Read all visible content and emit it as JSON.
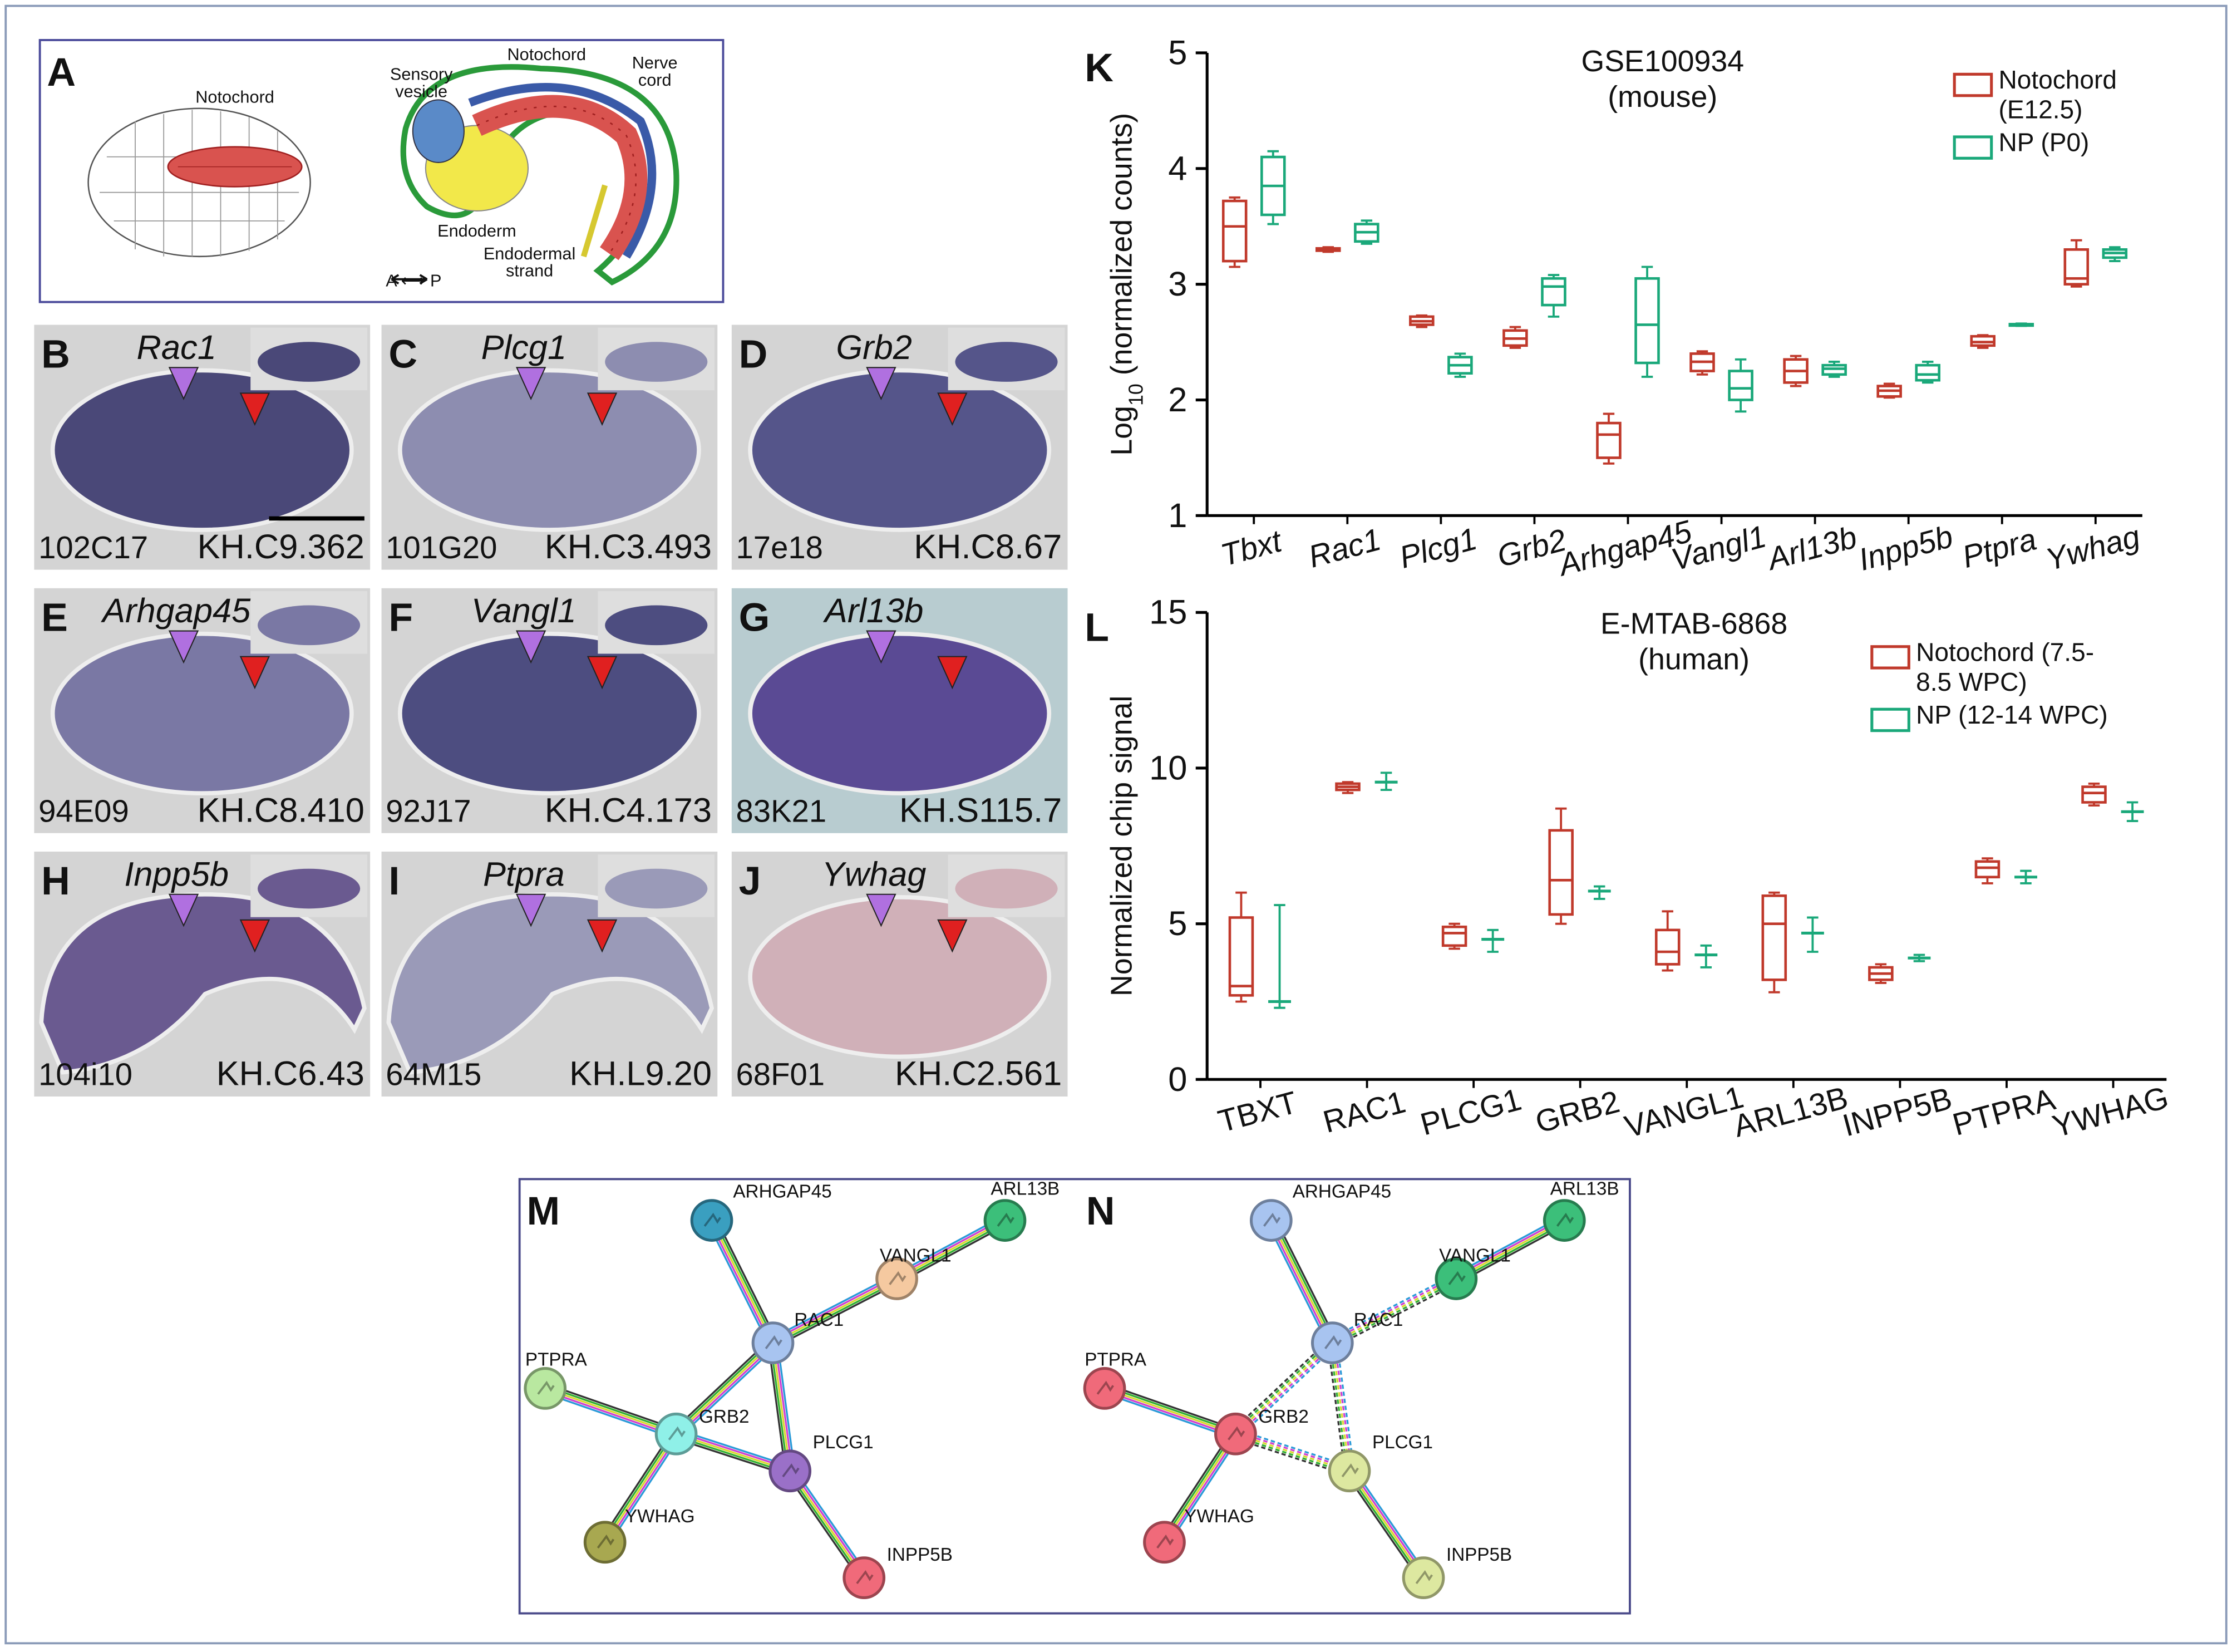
{
  "panel_a": {
    "label": "A",
    "embryo_label": "Notochord",
    "larva_labels": [
      [
        "Sensory",
        "vesicle"
      ],
      [
        "Notochord"
      ],
      [
        "Nerve",
        "cord"
      ],
      [
        "Endoderm"
      ],
      [
        "Endodermal",
        "strand"
      ]
    ],
    "axis": "A ⟷ P"
  },
  "in_situ": [
    {
      "label": "B",
      "gene": "Rac1",
      "clone": "102C17",
      "model": "KH.C9.362"
    },
    {
      "label": "C",
      "gene": "Plcg1",
      "clone": "101G20",
      "model": "KH.C3.493"
    },
    {
      "label": "D",
      "gene": "Grb2",
      "clone": "17e18",
      "model": "KH.C8.67"
    },
    {
      "label": "E",
      "gene": "Arhgap45",
      "clone": "94E09",
      "model": "KH.C8.410"
    },
    {
      "label": "F",
      "gene": "Vangl1",
      "clone": "92J17",
      "model": "KH.C4.173"
    },
    {
      "label": "G",
      "gene": "Arl13b",
      "clone": "83K21",
      "model": "KH.S115.7"
    },
    {
      "label": "H",
      "gene": "Inpp5b",
      "clone": "104i10",
      "model": "KH.C6.43"
    },
    {
      "label": "I",
      "gene": "Ptpra",
      "clone": "64M15",
      "model": "KH.L9.20"
    },
    {
      "label": "J",
      "gene": "Ywhag",
      "clone": "68F01",
      "model": "KH.C2.561"
    }
  ],
  "chart_data": [
    {
      "type": "box",
      "panel": "K",
      "title": "GSE100934",
      "subtitle": "(mouse)",
      "y_label": {
        "base": "Log",
        "subscript": "10",
        "text": " (normalized counts)"
      },
      "categories": [
        "Tbxt",
        "Rac1",
        "Plcg1",
        "Grb2",
        "Arhgap45",
        "Vangl1",
        "Arl13b",
        "Inpp5b",
        "Ptpra",
        "Ywhag"
      ],
      "category_style": "italic",
      "ylim": [
        1,
        5
      ],
      "yticks": [
        1,
        2,
        3,
        4,
        5
      ],
      "legend": "top-right",
      "series": [
        {
          "name": "Notochord (E12.5)",
          "color": "#c0392b",
          "min": [
            3.15,
            3.28,
            2.63,
            2.45,
            1.45,
            2.22,
            2.12,
            2.02,
            2.45,
            2.98
          ],
          "q1": [
            3.2,
            3.29,
            2.65,
            2.47,
            1.5,
            2.25,
            2.15,
            2.03,
            2.47,
            3.0
          ],
          "median": [
            3.5,
            3.3,
            2.68,
            2.53,
            1.7,
            2.33,
            2.25,
            2.08,
            2.5,
            3.05
          ],
          "q3": [
            3.72,
            3.31,
            2.72,
            2.6,
            1.8,
            2.4,
            2.35,
            2.12,
            2.55,
            3.3
          ],
          "max": [
            3.75,
            3.32,
            2.73,
            2.63,
            1.88,
            2.42,
            2.38,
            2.14,
            2.56,
            3.38
          ]
        },
        {
          "name": "NP (P0)",
          "color": "#1aa87a",
          "min": [
            3.52,
            3.35,
            2.2,
            2.72,
            2.2,
            1.9,
            2.2,
            2.15,
            2.64,
            3.2
          ],
          "q1": [
            3.6,
            3.37,
            2.23,
            2.82,
            2.32,
            2.0,
            2.22,
            2.17,
            2.645,
            3.23
          ],
          "median": [
            3.85,
            3.45,
            2.3,
            2.98,
            2.65,
            2.1,
            2.27,
            2.22,
            2.65,
            3.27
          ],
          "q3": [
            4.1,
            3.52,
            2.37,
            3.05,
            3.05,
            2.25,
            2.3,
            2.3,
            2.655,
            3.3
          ],
          "max": [
            4.15,
            3.55,
            2.4,
            3.08,
            3.15,
            2.35,
            2.33,
            2.33,
            2.66,
            3.32
          ]
        }
      ]
    },
    {
      "type": "box",
      "panel": "L",
      "title": "E-MTAB-6868",
      "subtitle": "(human)",
      "y_label": {
        "base": "Normalized chip signal"
      },
      "categories": [
        "TBXT",
        "RAC1",
        "PLCG1",
        "GRB2",
        "VANGL1",
        "ARL13B",
        "INPP5B",
        "PTPRA",
        "YWHAG"
      ],
      "category_style": "normal",
      "ylim": [
        0,
        15
      ],
      "yticks": [
        0,
        5,
        10,
        15
      ],
      "legend": "top-right",
      "series": [
        {
          "name": "Notochord (7.5-8.5 WPC)",
          "color": "#c0392b",
          "min": [
            2.5,
            9.2,
            4.2,
            5.0,
            3.5,
            2.8,
            3.1,
            6.3,
            8.8
          ],
          "q1": [
            2.7,
            9.3,
            4.3,
            5.3,
            3.7,
            3.2,
            3.2,
            6.5,
            8.9
          ],
          "median": [
            3.0,
            9.4,
            4.7,
            6.4,
            4.1,
            5.0,
            3.4,
            6.8,
            9.2
          ],
          "q3": [
            5.2,
            9.5,
            4.9,
            8.0,
            4.8,
            5.9,
            3.6,
            7.0,
            9.4
          ],
          "max": [
            6.0,
            9.55,
            5.0,
            8.7,
            5.4,
            6.0,
            3.7,
            7.1,
            9.5
          ]
        },
        {
          "name": "NP (12-14 WPC)",
          "color": "#1aa87a",
          "min": [
            2.3,
            9.3,
            4.1,
            5.8,
            3.6,
            4.1,
            3.8,
            6.3,
            8.3
          ],
          "median": [
            2.5,
            9.55,
            4.5,
            6.05,
            4.0,
            4.7,
            3.9,
            6.5,
            8.6
          ],
          "max": [
            5.6,
            9.85,
            4.8,
            6.2,
            4.3,
            5.2,
            4.0,
            6.7,
            8.9
          ]
        }
      ]
    }
  ],
  "networks": {
    "genes": [
      "ARHGAP45",
      "ARL13B",
      "VANGL1",
      "RAC1",
      "PTPRA",
      "GRB2",
      "PLCG1",
      "YWHAG",
      "INPP5B"
    ],
    "panels": [
      {
        "label": "M",
        "colors": [
          "#3a9fc0",
          "#3cbf7a",
          "#f5c9a0",
          "#a8c4f0",
          "#b9e8a0",
          "#8ff0e8",
          "#9a70c8",
          "#a8a850",
          "#f06a7a"
        ]
      },
      {
        "label": "N",
        "colors": [
          "#a8c4f0",
          "#3cbf7a",
          "#3cbf7a",
          "#a8c4f0",
          "#f06a7a",
          "#f06a7a",
          "#dde8a0",
          "#f06a7a",
          "#dde8a0"
        ]
      }
    ]
  }
}
